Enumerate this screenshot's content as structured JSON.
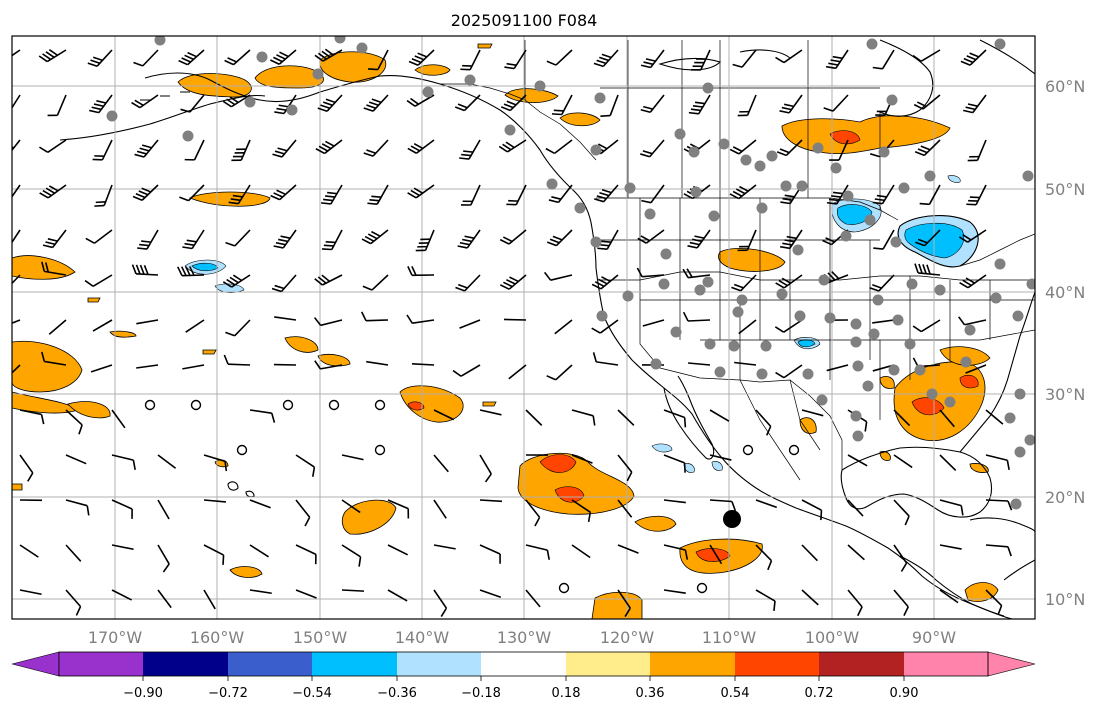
{
  "title": "2025091100 F084",
  "lat_labels": [
    "60°N",
    "50°N",
    "40°N",
    "30°N",
    "20°N",
    "10°N"
  ],
  "lon_labels": [
    "170°W",
    "160°W",
    "150°W",
    "140°W",
    "130°W",
    "120°W",
    "110°W",
    "100°W",
    "90°W"
  ],
  "colorbar": {
    "tick_labels": [
      "−0.90",
      "−0.72",
      "−0.54",
      "−0.36",
      "−0.18",
      "0.18",
      "0.36",
      "0.54",
      "0.72",
      "0.90"
    ],
    "colors": [
      "#9932cc",
      "#00008b",
      "#3a5fcd",
      "#00bfff",
      "#b0e2ff",
      "#ffffff",
      "#ffec8b",
      "#ffa500",
      "#ff4500",
      "#b22222",
      "#ff83aa"
    ]
  },
  "legend_colors": {
    "orange": "#ffa500",
    "red_orange": "#ff4500",
    "light_blue": "#b0e2ff",
    "sky_blue": "#00bfff",
    "station_dot": "#808080",
    "grid": "#b0b0b0"
  }
}
